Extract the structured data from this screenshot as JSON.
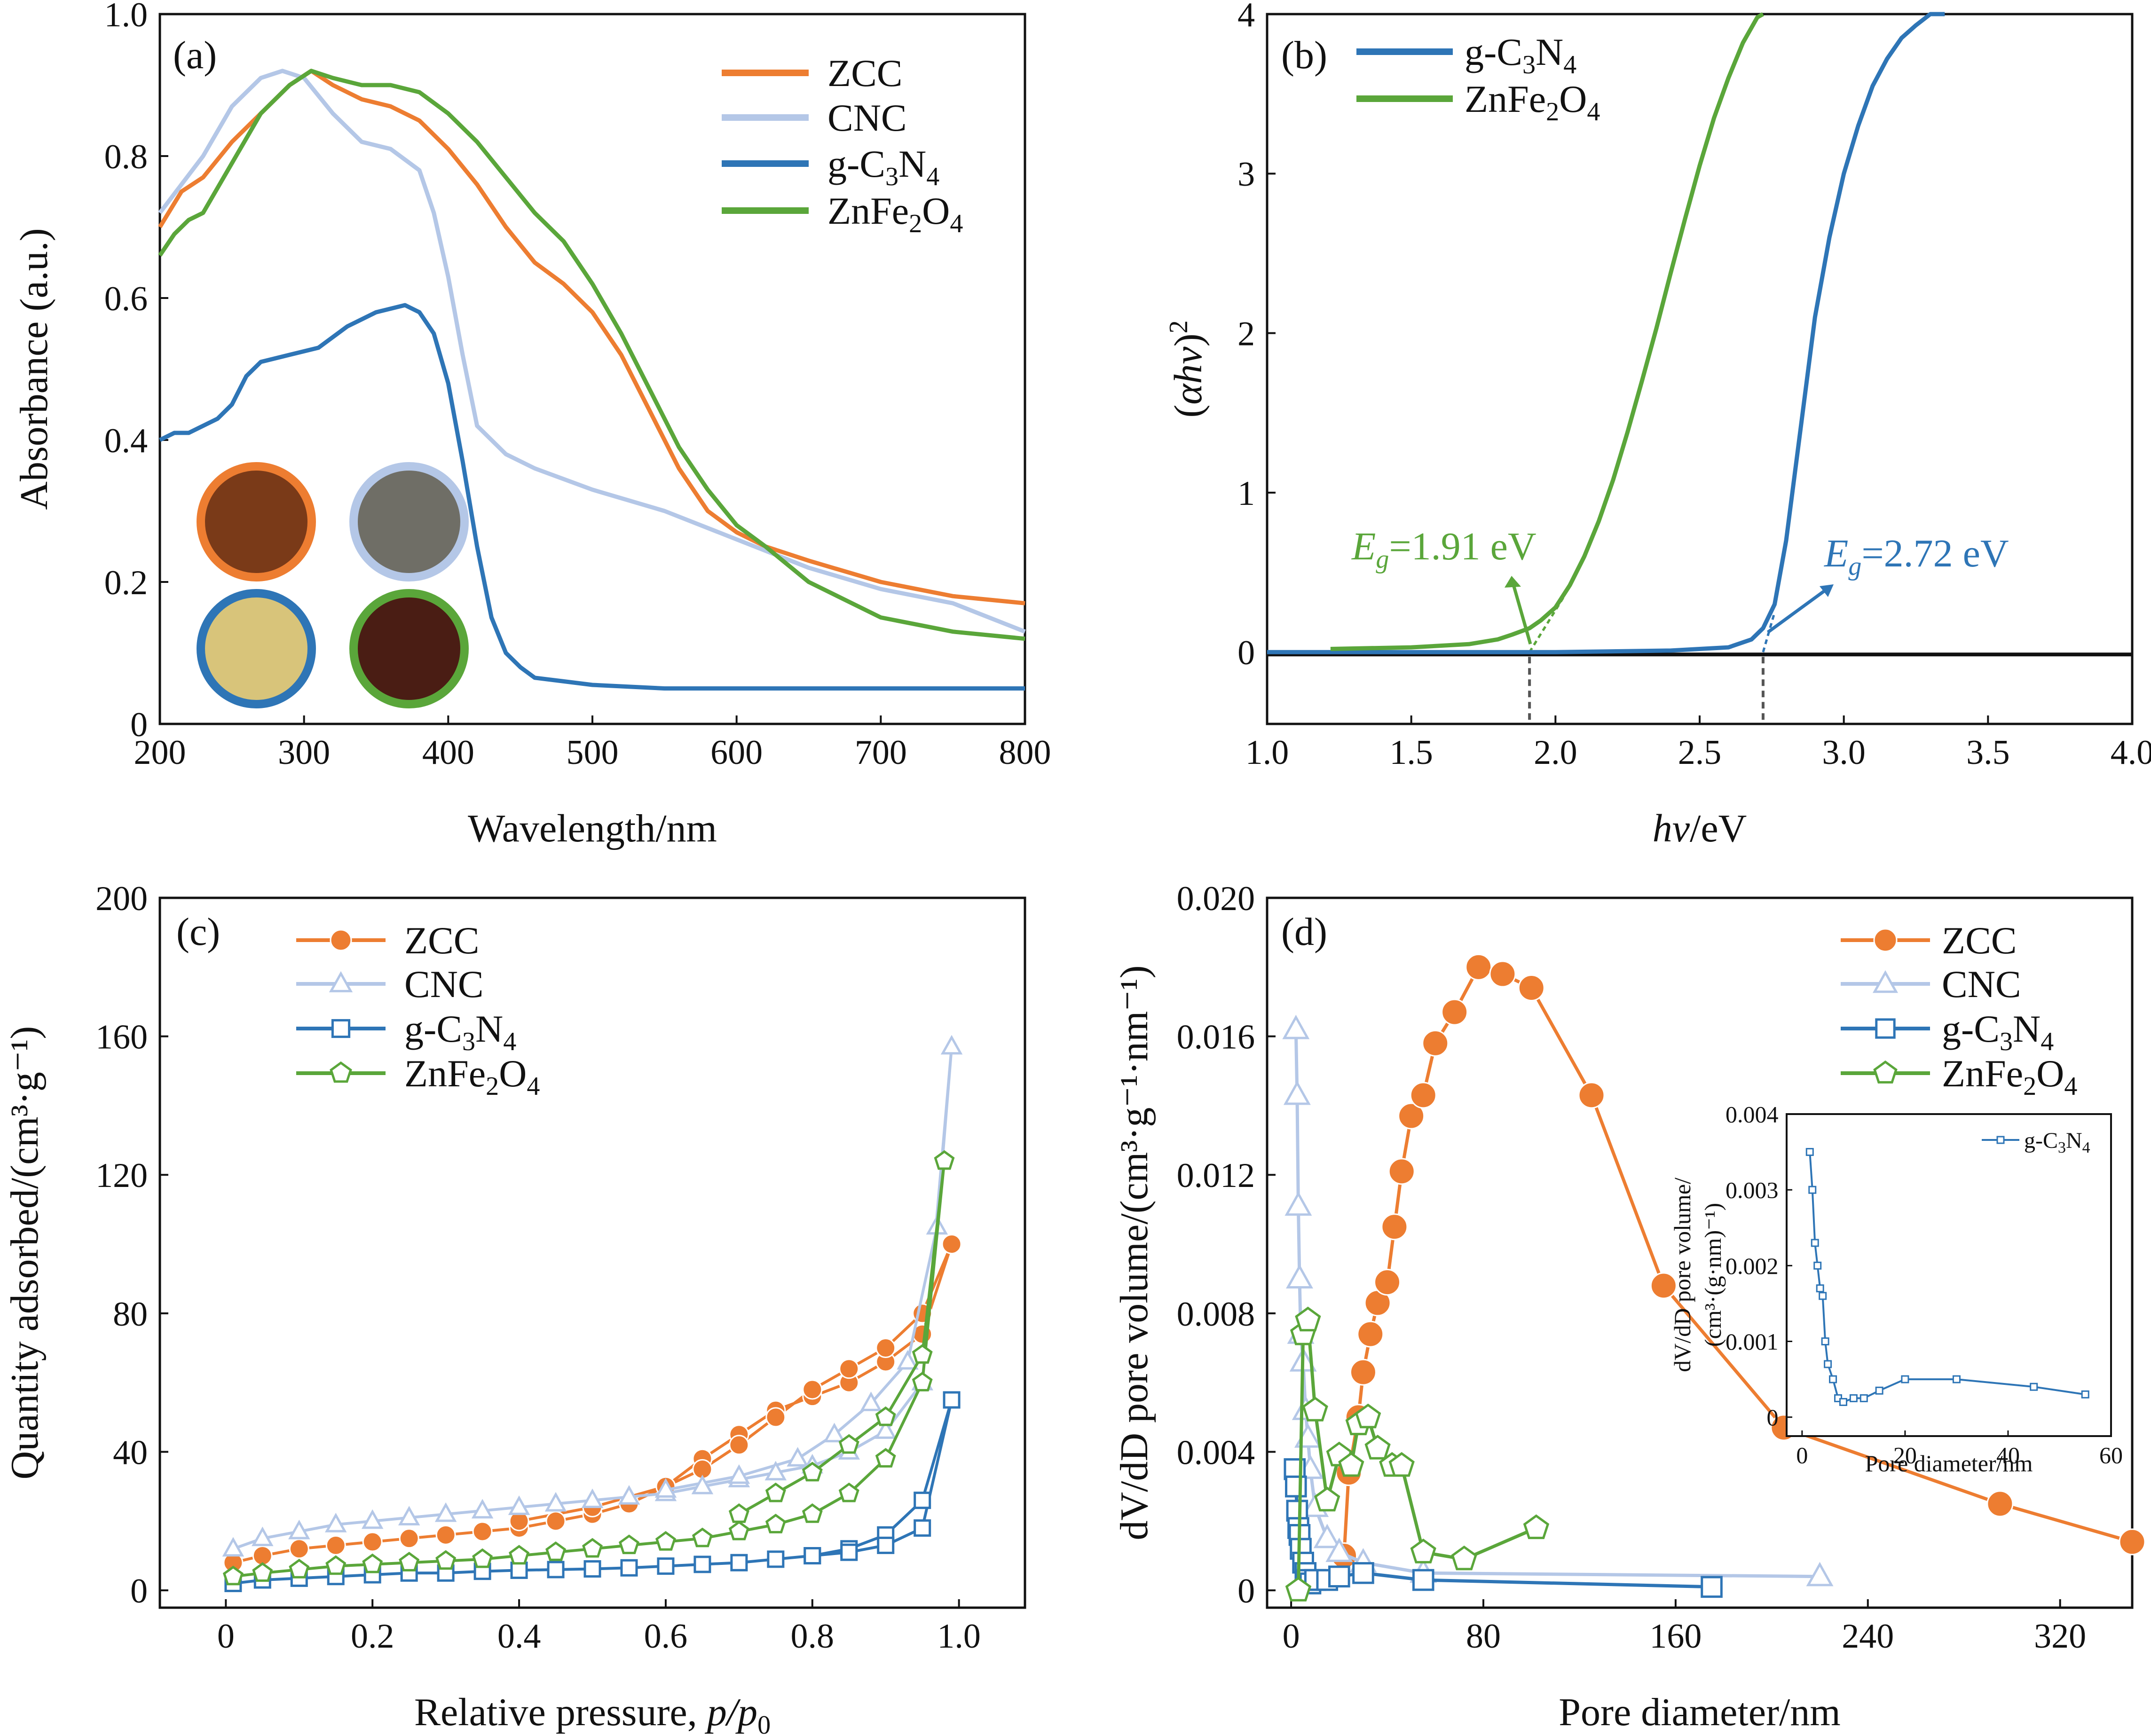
{
  "colors": {
    "ZCC": "#ed7d31",
    "CNC": "#b4c7e7",
    "gC3N4": "#2e75b6",
    "ZnFe2O4": "#5aa63a",
    "axis": "#111111",
    "swatch_ZCC_fill": "#7a3a18",
    "swatch_CNC_fill": "#6f6e66",
    "swatch_gC3N4_fill": "#d8c47a",
    "swatch_ZnFe2O4_fill": "#4a1d14"
  },
  "panels": {
    "a": {
      "label": "(a)"
    },
    "b": {
      "label": "(b)"
    },
    "c": {
      "label": "(c)"
    },
    "d": {
      "label": "(d)"
    }
  },
  "chart_data": [
    {
      "id": "a",
      "type": "line",
      "title": "",
      "xlabel": "Wavelength/nm",
      "ylabel": "Absorbance (a.u.)",
      "xlim": [
        200,
        800
      ],
      "ylim": [
        0,
        1.0
      ],
      "xticks": [
        200,
        300,
        400,
        500,
        600,
        700,
        800
      ],
      "xtick_labels": [
        "200",
        "300",
        "400",
        "500",
        "600",
        "700",
        "800"
      ],
      "yticks": [
        0,
        0.2,
        0.4,
        0.6,
        0.8,
        1.0
      ],
      "ytick_labels": [
        "0",
        "0.2",
        "0.4",
        "0.6",
        "0.8",
        "1.0"
      ],
      "legend": [
        "ZCC",
        "CNC",
        "g-C3N4",
        "ZnFe2O4"
      ],
      "legend_position": "top-right",
      "inset_photos": [
        "ZCC",
        "CNC",
        "g-C3N4",
        "ZnFe2O4"
      ],
      "series": [
        {
          "name": "ZCC",
          "color_key": "ZCC",
          "x": [
            200,
            215,
            230,
            250,
            270,
            290,
            305,
            320,
            340,
            360,
            380,
            400,
            420,
            440,
            460,
            480,
            500,
            520,
            540,
            560,
            580,
            600,
            620,
            650,
            700,
            750,
            800
          ],
          "y": [
            0.7,
            0.75,
            0.77,
            0.82,
            0.86,
            0.9,
            0.92,
            0.9,
            0.88,
            0.87,
            0.85,
            0.81,
            0.76,
            0.7,
            0.65,
            0.62,
            0.58,
            0.52,
            0.44,
            0.36,
            0.3,
            0.27,
            0.25,
            0.23,
            0.2,
            0.18,
            0.17
          ]
        },
        {
          "name": "CNC",
          "color_key": "CNC",
          "x": [
            200,
            215,
            230,
            250,
            270,
            285,
            300,
            320,
            340,
            360,
            380,
            390,
            400,
            410,
            420,
            440,
            460,
            500,
            550,
            600,
            650,
            700,
            750,
            800
          ],
          "y": [
            0.72,
            0.76,
            0.8,
            0.87,
            0.91,
            0.92,
            0.91,
            0.86,
            0.82,
            0.81,
            0.78,
            0.72,
            0.63,
            0.52,
            0.42,
            0.38,
            0.36,
            0.33,
            0.3,
            0.26,
            0.22,
            0.19,
            0.17,
            0.13
          ]
        },
        {
          "name": "g-C3N4",
          "color_key": "gC3N4",
          "x": [
            200,
            210,
            220,
            230,
            240,
            250,
            260,
            270,
            290,
            310,
            330,
            350,
            370,
            380,
            390,
            400,
            410,
            420,
            430,
            440,
            450,
            460,
            480,
            500,
            550,
            600,
            700,
            800
          ],
          "y": [
            0.4,
            0.41,
            0.41,
            0.42,
            0.43,
            0.45,
            0.49,
            0.51,
            0.52,
            0.53,
            0.56,
            0.58,
            0.59,
            0.58,
            0.55,
            0.48,
            0.37,
            0.25,
            0.15,
            0.1,
            0.08,
            0.065,
            0.06,
            0.055,
            0.05,
            0.05,
            0.05,
            0.05
          ]
        },
        {
          "name": "ZnFe2O4",
          "color_key": "ZnFe2O4",
          "x": [
            200,
            210,
            220,
            230,
            250,
            270,
            290,
            305,
            320,
            340,
            360,
            380,
            400,
            420,
            440,
            460,
            480,
            500,
            520,
            540,
            560,
            580,
            600,
            620,
            650,
            700,
            750,
            800
          ],
          "y": [
            0.66,
            0.69,
            0.71,
            0.72,
            0.79,
            0.86,
            0.9,
            0.92,
            0.91,
            0.9,
            0.9,
            0.89,
            0.86,
            0.82,
            0.77,
            0.72,
            0.68,
            0.62,
            0.55,
            0.47,
            0.39,
            0.33,
            0.28,
            0.25,
            0.2,
            0.15,
            0.13,
            0.12
          ]
        }
      ]
    },
    {
      "id": "b",
      "type": "line",
      "title": "",
      "xlabel": "hν/eV",
      "ylabel": "(αhν)²",
      "xlim": [
        1.0,
        4.0
      ],
      "ylim": [
        -0.45,
        4.0
      ],
      "xticks": [
        1.0,
        1.5,
        2.0,
        2.5,
        3.0,
        3.5,
        4.0
      ],
      "xtick_labels": [
        "1.0",
        "1.5",
        "2.0",
        "2.5",
        "3.0",
        "3.5",
        "4.0"
      ],
      "yticks": [
        0,
        1,
        2,
        3,
        4
      ],
      "ytick_labels": [
        "0",
        "1",
        "2",
        "3",
        "4"
      ],
      "legend": [
        "g-C3N4",
        "ZnFe2O4"
      ],
      "legend_position": "top-left",
      "annotations": [
        {
          "text_pre": "E",
          "sub": "g",
          "text_post": "=1.91 eV",
          "color_key": "ZnFe2O4",
          "x": 1.91
        },
        {
          "text_pre": "E",
          "sub": "g",
          "text_post": "=2.72 eV",
          "color_key": "gC3N4",
          "x": 2.72
        }
      ],
      "series": [
        {
          "name": "g-C3N4",
          "color_key": "gC3N4",
          "x": [
            1.0,
            2.0,
            2.4,
            2.6,
            2.68,
            2.72,
            2.76,
            2.8,
            2.85,
            2.9,
            2.95,
            3.0,
            3.05,
            3.1,
            3.15,
            3.2,
            3.25,
            3.3,
            3.35
          ],
          "y": [
            0,
            0,
            0.01,
            0.03,
            0.08,
            0.15,
            0.3,
            0.7,
            1.4,
            2.1,
            2.6,
            3.0,
            3.3,
            3.55,
            3.72,
            3.85,
            3.93,
            4.0,
            4.05
          ]
        },
        {
          "name": "ZnFe2O4",
          "color_key": "ZnFe2O4",
          "x": [
            1.22,
            1.5,
            1.7,
            1.8,
            1.85,
            1.91,
            1.95,
            2.0,
            2.05,
            2.1,
            2.15,
            2.2,
            2.25,
            2.3,
            2.35,
            2.4,
            2.45,
            2.5,
            2.55,
            2.6,
            2.65,
            2.7,
            2.72
          ],
          "y": [
            0.02,
            0.03,
            0.05,
            0.08,
            0.11,
            0.15,
            0.2,
            0.28,
            0.42,
            0.6,
            0.82,
            1.08,
            1.38,
            1.7,
            2.03,
            2.38,
            2.72,
            3.05,
            3.35,
            3.6,
            3.82,
            3.98,
            4.05
          ]
        }
      ]
    },
    {
      "id": "c",
      "type": "scatter",
      "title": "",
      "xlabel_pre": "Relative pressure, ",
      "xlabel_var": "p/p",
      "xlabel_sub": "0",
      "ylabel": "Quantity adsorbed/(cm³·g⁻¹)",
      "xlim": [
        -0.09,
        1.09
      ],
      "ylim": [
        -5,
        200
      ],
      "xticks": [
        0,
        0.2,
        0.4,
        0.6,
        0.8,
        1.0
      ],
      "xtick_labels": [
        "0",
        "0.2",
        "0.4",
        "0.6",
        "0.8",
        "1.0"
      ],
      "yticks": [
        0,
        40,
        80,
        120,
        160,
        200
      ],
      "ytick_labels": [
        "0",
        "40",
        "80",
        "120",
        "160",
        "200"
      ],
      "legend": [
        "ZCC",
        "CNC",
        "g-C3N4",
        "ZnFe2O4"
      ],
      "legend_position": "top-left",
      "series": [
        {
          "name": "ZCC",
          "color_key": "ZCC",
          "marker": "filled-circle",
          "x": [
            0.01,
            0.05,
            0.1,
            0.15,
            0.2,
            0.25,
            0.3,
            0.35,
            0.4,
            0.45,
            0.5,
            0.55,
            0.6,
            0.65,
            0.7,
            0.75,
            0.8,
            0.85,
            0.9,
            0.95,
            0.99,
            0.95,
            0.9,
            0.85,
            0.8,
            0.75,
            0.7,
            0.65,
            0.6,
            0.5,
            0.4
          ],
          "y": [
            8,
            10,
            12,
            13,
            14,
            15,
            16,
            17,
            18,
            20,
            22,
            25,
            30,
            38,
            45,
            52,
            56,
            60,
            66,
            74,
            100,
            80,
            70,
            64,
            58,
            50,
            42,
            35,
            30,
            24,
            20
          ]
        },
        {
          "name": "CNC",
          "color_key": "CNC",
          "marker": "open-triangle",
          "x": [
            0.01,
            0.05,
            0.1,
            0.15,
            0.2,
            0.25,
            0.3,
            0.35,
            0.4,
            0.45,
            0.5,
            0.55,
            0.6,
            0.65,
            0.7,
            0.75,
            0.8,
            0.85,
            0.9,
            0.95,
            0.99,
            0.97,
            0.93,
            0.88,
            0.83,
            0.78,
            0.7,
            0.6
          ],
          "y": [
            12,
            15,
            17,
            19,
            20,
            21,
            22,
            23,
            24,
            25,
            26,
            27,
            28,
            30,
            32,
            34,
            36,
            40,
            46,
            60,
            157,
            105,
            66,
            54,
            45,
            38,
            33,
            29
          ]
        },
        {
          "name": "g-C3N4",
          "color_key": "gC3N4",
          "marker": "open-square",
          "x": [
            0.01,
            0.05,
            0.1,
            0.15,
            0.2,
            0.25,
            0.3,
            0.35,
            0.4,
            0.45,
            0.5,
            0.55,
            0.6,
            0.65,
            0.7,
            0.75,
            0.8,
            0.85,
            0.9,
            0.95,
            0.99,
            0.95,
            0.9,
            0.85,
            0.8
          ],
          "y": [
            2,
            3,
            3.5,
            4,
            4.5,
            5,
            5,
            5.5,
            5.8,
            6,
            6.2,
            6.5,
            7,
            7.5,
            8,
            9,
            10,
            12,
            16,
            26,
            55,
            18,
            13,
            11,
            10
          ]
        },
        {
          "name": "ZnFe2O4",
          "color_key": "ZnFe2O4",
          "marker": "open-pentagon",
          "x": [
            0.01,
            0.05,
            0.1,
            0.15,
            0.2,
            0.25,
            0.3,
            0.35,
            0.4,
            0.45,
            0.5,
            0.55,
            0.6,
            0.65,
            0.7,
            0.75,
            0.8,
            0.85,
            0.9,
            0.95,
            0.98,
            0.95,
            0.9,
            0.85,
            0.8,
            0.75,
            0.7
          ],
          "y": [
            4,
            5,
            6,
            7,
            7.5,
            8,
            8.5,
            9,
            10,
            11,
            12,
            13,
            14,
            15,
            17,
            19,
            22,
            28,
            38,
            60,
            124,
            68,
            50,
            42,
            34,
            28,
            22
          ]
        }
      ]
    },
    {
      "id": "d",
      "type": "scatter",
      "title": "",
      "xlabel": "Pore diameter/nm",
      "ylabel": "dV/dD pore volume/(cm³·g⁻¹·nm⁻¹)",
      "xlim": [
        -10,
        350
      ],
      "ylim": [
        -0.0005,
        0.02
      ],
      "xticks": [
        0,
        80,
        160,
        240,
        320
      ],
      "xtick_labels": [
        "0",
        "80",
        "160",
        "240",
        "320"
      ],
      "yticks": [
        0,
        0.004,
        0.008,
        0.012,
        0.016,
        0.02
      ],
      "ytick_labels": [
        "0",
        "0.004",
        "0.008",
        "0.012",
        "0.016",
        "0.020"
      ],
      "legend": [
        "ZCC",
        "CNC",
        "g-C3N4",
        "ZnFe2O4"
      ],
      "legend_position": "top-right",
      "series": [
        {
          "name": "ZCC",
          "color_key": "ZCC",
          "marker": "filled-circle",
          "x": [
            22,
            24,
            28,
            30,
            33,
            36,
            40,
            43,
            46,
            50,
            55,
            60,
            68,
            78,
            88,
            100,
            125,
            155,
            205,
            295,
            350
          ],
          "y": [
            0.001,
            0.0034,
            0.005,
            0.0063,
            0.0074,
            0.0083,
            0.0089,
            0.0105,
            0.0121,
            0.0137,
            0.0143,
            0.0158,
            0.0167,
            0.018,
            0.0178,
            0.0174,
            0.0143,
            0.0088,
            0.0047,
            0.0025,
            0.0014
          ]
        },
        {
          "name": "CNC",
          "color_key": "CNC",
          "marker": "open-triangle",
          "x": [
            2,
            2.5,
            3,
            3.5,
            4,
            5,
            6,
            7,
            8,
            10,
            15,
            20,
            30,
            55,
            220
          ],
          "y": [
            0.0162,
            0.0143,
            0.0111,
            0.009,
            0.0074,
            0.0066,
            0.0052,
            0.0044,
            0.0035,
            0.0024,
            0.0015,
            0.0011,
            0.0008,
            0.0005,
            0.0004
          ]
        },
        {
          "name": "g-C3N4",
          "color_key": "gC3N4",
          "marker": "open-square",
          "x": [
            1.5,
            2,
            2.5,
            3,
            3.5,
            4,
            5,
            6,
            7,
            8,
            10,
            15,
            20,
            30,
            55,
            175
          ],
          "y": [
            0.0035,
            0.003,
            0.0023,
            0.0018,
            0.0016,
            0.0012,
            0.0008,
            0.0005,
            0.0003,
            0.0002,
            0.0003,
            0.0003,
            0.0004,
            0.0005,
            0.0003,
            0.0001
          ]
        },
        {
          "name": "ZnFe2O4",
          "color_key": "ZnFe2O4",
          "marker": "open-pentagon",
          "x": [
            3,
            5,
            7,
            10,
            15,
            20,
            25,
            28,
            32,
            36,
            42,
            46,
            55,
            72,
            102
          ],
          "y": [
            0.0,
            0.0074,
            0.0078,
            0.0052,
            0.0026,
            0.0039,
            0.0036,
            0.0048,
            0.005,
            0.0041,
            0.0036,
            0.0036,
            0.0011,
            0.0009,
            0.0018
          ]
        }
      ],
      "inset": {
        "type": "line",
        "xlabel": "Pore diameter/nm",
        "ylabel_line1": "dV/dD pore volume/",
        "ylabel_line2": "(cm³·(g·nm)⁻¹)",
        "xlim": [
          -3,
          60
        ],
        "ylim": [
          -0.00025,
          0.004
        ],
        "xticks": [
          0,
          20,
          40,
          60
        ],
        "xtick_labels": [
          "0",
          "20",
          "40",
          "60"
        ],
        "yticks": [
          0,
          0.001,
          0.002,
          0.003,
          0.004
        ],
        "ytick_labels": [
          "0",
          "0.001",
          "0.002",
          "0.003",
          "0.004"
        ],
        "legend": [
          "g-C3N4"
        ],
        "legend_position": "top-right",
        "series": [
          {
            "name": "g-C3N4",
            "color_key": "gC3N4",
            "x": [
              1.5,
              2,
              2.5,
              3,
              3.5,
              4,
              4.5,
              5,
              6,
              7,
              8,
              10,
              12,
              15,
              20,
              30,
              45,
              55
            ],
            "y": [
              0.0035,
              0.003,
              0.0023,
              0.002,
              0.0017,
              0.0016,
              0.001,
              0.0007,
              0.0005,
              0.00025,
              0.0002,
              0.00025,
              0.00025,
              0.00035,
              0.0005,
              0.0005,
              0.0004,
              0.0003
            ]
          }
        ]
      }
    }
  ]
}
